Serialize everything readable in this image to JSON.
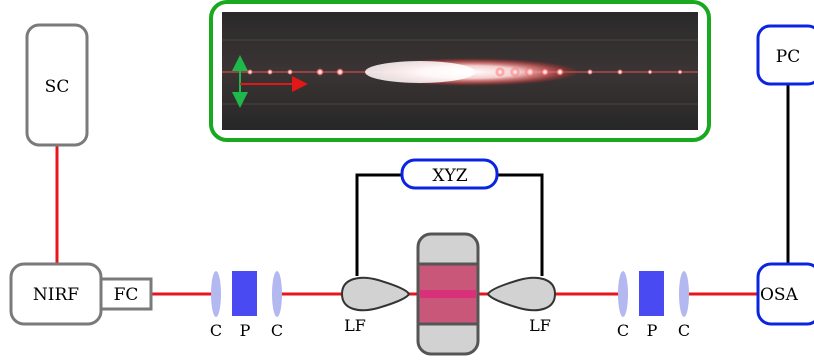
{
  "labels": {
    "sc": "SC",
    "nirf": "NIRF",
    "fc": "FC",
    "pc": "PC",
    "osa": "OSA",
    "xyz": "XYZ",
    "lf_left": "LF",
    "lf_right": "LF",
    "c1": "C",
    "p1": "P",
    "c2": "C",
    "c3": "C",
    "p2": "P",
    "c4": "C"
  },
  "colors": {
    "beam": "#e8161c",
    "box_gray": "#7a7a7a",
    "box_blue": "#0a24e0",
    "inset_border": "#19a81e",
    "lens": "#b3b8f0",
    "polarizer": "#4a4af2",
    "waveguide_fill": "#c9577a",
    "waveguide_core": "#d9307a",
    "mount": "#d2d2d2",
    "arrow_green": "#1fb84a",
    "arrow_red": "#e01818"
  },
  "icons": {
    "inset_arrows": "double-arrow-icon",
    "inset_beam": "right-arrow-icon"
  }
}
